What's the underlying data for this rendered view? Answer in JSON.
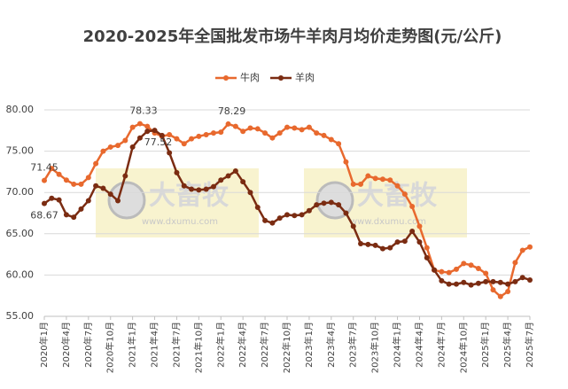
{
  "chart_data": {
    "type": "line",
    "title": "2020-2025年全国批发市场牛羊肉月均价走势图(元/公斤)",
    "categories": [
      "2020年1月",
      null,
      null,
      "2020年4月",
      null,
      null,
      "2020年7月",
      null,
      null,
      "2020年10月",
      null,
      null,
      "2021年1月",
      null,
      null,
      "2021年4月",
      null,
      null,
      "2021年7月",
      null,
      null,
      "2021年10月",
      null,
      null,
      "2022年1月",
      null,
      null,
      "2022年4月",
      null,
      null,
      "2022年7月",
      null,
      null,
      "2022年10月",
      null,
      null,
      "2023年1月",
      null,
      null,
      "2023年4月",
      null,
      null,
      "2023年7月",
      null,
      null,
      "2023年10月",
      null,
      null,
      "2024年1月",
      null,
      null,
      "2024年4月",
      null,
      null,
      "2024年7月",
      null,
      null,
      "2024年10月",
      null,
      null,
      "2025年1月",
      null,
      null,
      "2025年4月",
      null,
      null,
      "2025年7月"
    ],
    "series": [
      {
        "name": "牛肉",
        "color": "#e8692e",
        "values": [
          71.45,
          72.9,
          72.2,
          71.5,
          71.0,
          71.0,
          71.8,
          73.5,
          75.0,
          75.5,
          75.7,
          76.3,
          77.9,
          78.33,
          78.0,
          77.2,
          76.8,
          77.0,
          76.5,
          75.9,
          76.5,
          76.8,
          77.0,
          77.2,
          77.3,
          78.29,
          78.0,
          77.4,
          77.8,
          77.7,
          77.2,
          76.6,
          77.2,
          77.9,
          77.8,
          77.6,
          77.9,
          77.2,
          76.9,
          76.4,
          75.9,
          73.7,
          71.0,
          71.0,
          72.0,
          71.7,
          71.6,
          71.5,
          70.8,
          69.8,
          68.3,
          65.9,
          63.3,
          60.6,
          60.4,
          60.3,
          60.7,
          61.4,
          61.2,
          60.8,
          60.2,
          58.2,
          57.4,
          58.0,
          61.5,
          63.0,
          63.4
        ],
        "value_labels": [
          "71.45",
          null,
          null,
          null,
          null,
          null,
          null,
          null,
          null,
          null,
          null,
          null,
          null,
          "78.33",
          null,
          null,
          null,
          null,
          null,
          null,
          null,
          null,
          null,
          null,
          null,
          "78.29",
          null,
          null,
          null,
          null,
          null,
          null,
          null,
          null,
          null,
          null,
          null,
          null,
          null,
          null,
          null,
          null,
          null,
          null,
          null,
          null,
          null,
          null,
          null,
          null,
          null,
          null,
          null,
          null,
          null,
          null,
          null,
          null,
          null,
          null,
          null,
          null,
          null,
          null,
          null,
          null,
          null
        ]
      },
      {
        "name": "羊肉",
        "color": "#7b2c12",
        "values": [
          68.67,
          69.3,
          69.1,
          67.3,
          67.0,
          68.0,
          69.0,
          70.8,
          70.5,
          69.8,
          69.0,
          72.0,
          75.5,
          76.6,
          77.4,
          77.52,
          76.9,
          74.8,
          72.4,
          70.8,
          70.4,
          70.3,
          70.4,
          70.7,
          71.5,
          72.0,
          72.6,
          71.3,
          70.0,
          68.2,
          66.6,
          66.3,
          66.9,
          67.3,
          67.2,
          67.3,
          67.8,
          68.5,
          68.7,
          68.8,
          68.5,
          67.5,
          65.9,
          63.8,
          63.7,
          63.6,
          63.2,
          63.3,
          64.0,
          64.1,
          65.3,
          64.0,
          62.1,
          60.6,
          59.3,
          58.9,
          58.9,
          59.1,
          58.8,
          59.0,
          59.2,
          59.2,
          59.1,
          58.9,
          59.2,
          59.7,
          59.4
        ],
        "value_labels": [
          "68.67",
          null,
          null,
          null,
          null,
          null,
          null,
          null,
          null,
          null,
          null,
          null,
          null,
          null,
          null,
          "77.52",
          null,
          null,
          null,
          null,
          null,
          null,
          null,
          null,
          null,
          null,
          null,
          null,
          null,
          null,
          null,
          null,
          null,
          null,
          null,
          null,
          null,
          null,
          null,
          null,
          null,
          null,
          null,
          null,
          null,
          null,
          null,
          null,
          null,
          null,
          null,
          null,
          null,
          null,
          null,
          null,
          null,
          null,
          null,
          null,
          null,
          null,
          null,
          null,
          null,
          null,
          null
        ]
      }
    ],
    "ylim": [
      55,
      80
    ],
    "yticks": [
      {
        "value": 55,
        "label": "55.00"
      },
      {
        "value": 60,
        "label": "60.00"
      },
      {
        "value": 65,
        "label": "65.00"
      },
      {
        "value": 70,
        "label": "70.00"
      },
      {
        "value": 75,
        "label": "75.00"
      },
      {
        "value": 80,
        "label": "80.00"
      }
    ],
    "grid": true,
    "legend": "top",
    "watermark": {
      "text": "大畜牧",
      "url": "www.dxumu.com"
    }
  }
}
